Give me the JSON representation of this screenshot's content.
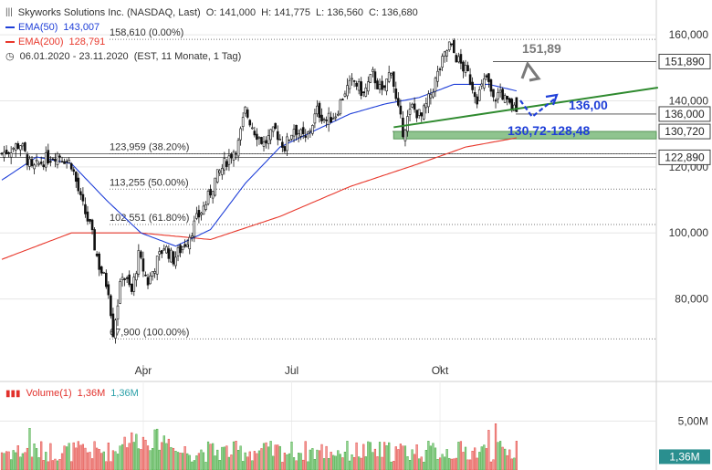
{
  "header": {
    "title": "Skyworks Solutions Inc. (NASDAQ, Last)",
    "o": "O: 141,000",
    "h": "H: 141,775",
    "l": "L: 136,560",
    "c": "C: 136,680",
    "ema50_label": "EMA(50)",
    "ema50_value": "143,007",
    "ema200_label": "EMA(200)",
    "ema200_value": "128,791",
    "period": "06.01.2020 - 23.11.2020",
    "period_note": "(EST, 11 Monate, 1 Tag)"
  },
  "volume_legend": {
    "label": "Volume(1)",
    "value_red": "1,36M",
    "value_teal": "1,36M"
  },
  "colors": {
    "up": "#32a02c",
    "down": "#e2312c",
    "ema50": "#1f3fd8",
    "ema200": "#e8382c",
    "trend": "#2f8a2f",
    "zone": "#8fc48f",
    "forecast": "#1f3fd8",
    "arrow_gray": "#7a7a7a",
    "last_price_bg": "#3a3a3a"
  },
  "chart_data": {
    "type": "candlestick",
    "ylim": [
      60000,
      165000
    ],
    "y_ticks": [
      {
        "v": 160000,
        "t": "160,000"
      },
      {
        "v": 140000,
        "t": "140,000"
      },
      {
        "v": 120000,
        "t": "120,000"
      },
      {
        "v": 100000,
        "t": "100,000"
      },
      {
        "v": 80000,
        "t": "80,000"
      }
    ],
    "x_ticks": [
      {
        "day": 61,
        "t": "Apr"
      },
      {
        "day": 125,
        "t": "Jul"
      },
      {
        "day": 189,
        "t": "Okt"
      }
    ],
    "fib_levels": [
      {
        "v": 158610,
        "t": "158,610 (0.00%)"
      },
      {
        "v": 123959,
        "t": "123,959 (38.20%)"
      },
      {
        "v": 113255,
        "t": "113,255 (50.00%)"
      },
      {
        "v": 102551,
        "t": "102,551 (61.80%)"
      },
      {
        "v": 67900,
        "t": "67,900 (100.00%)"
      }
    ],
    "price_labels": [
      {
        "v": 151890,
        "t": "151,890",
        "bg": "#ffffff",
        "fg": "#222222"
      },
      {
        "v": 136000,
        "t": "136,000",
        "bg": "#ffffff",
        "fg": "#222222"
      },
      {
        "v": 130720,
        "t": "130,720",
        "bg": "#ffffff",
        "fg": "#222222"
      },
      {
        "v": 122890,
        "t": "122,890",
        "bg": "#ffffff",
        "fg": "#222222"
      }
    ],
    "annotations": {
      "top_target": "151,89",
      "support": "136,00",
      "zone": "130,72-128,48"
    },
    "anchors": [
      {
        "d": 0,
        "c": 124000
      },
      {
        "d": 8,
        "c": 127000
      },
      {
        "d": 13,
        "c": 119000
      },
      {
        "d": 18,
        "c": 122000
      },
      {
        "d": 24,
        "c": 124000
      },
      {
        "d": 30,
        "c": 121000
      },
      {
        "d": 34,
        "c": 110000
      },
      {
        "d": 38,
        "c": 102000
      },
      {
        "d": 42,
        "c": 90000
      },
      {
        "d": 46,
        "c": 83000
      },
      {
        "d": 48,
        "c": 70000
      },
      {
        "d": 52,
        "c": 88000
      },
      {
        "d": 56,
        "c": 82000
      },
      {
        "d": 59,
        "c": 93000
      },
      {
        "d": 63,
        "c": 85000
      },
      {
        "d": 66,
        "c": 90000
      },
      {
        "d": 70,
        "c": 96000
      },
      {
        "d": 74,
        "c": 92000
      },
      {
        "d": 80,
        "c": 98000
      },
      {
        "d": 84,
        "c": 104000
      },
      {
        "d": 88,
        "c": 109000
      },
      {
        "d": 92,
        "c": 116000
      },
      {
        "d": 97,
        "c": 122000
      },
      {
        "d": 102,
        "c": 127000
      },
      {
        "d": 105,
        "c": 137000
      },
      {
        "d": 109,
        "c": 131000
      },
      {
        "d": 113,
        "c": 127000
      },
      {
        "d": 118,
        "c": 131000
      },
      {
        "d": 122,
        "c": 126000
      },
      {
        "d": 126,
        "c": 132000
      },
      {
        "d": 131,
        "c": 128000
      },
      {
        "d": 136,
        "c": 137000
      },
      {
        "d": 140,
        "c": 134000
      },
      {
        "d": 144,
        "c": 136000
      },
      {
        "d": 148,
        "c": 143000
      },
      {
        "d": 152,
        "c": 146000
      },
      {
        "d": 156,
        "c": 142000
      },
      {
        "d": 160,
        "c": 148000
      },
      {
        "d": 164,
        "c": 142000
      },
      {
        "d": 168,
        "c": 150000
      },
      {
        "d": 170,
        "c": 140000
      },
      {
        "d": 173,
        "c": 131000
      },
      {
        "d": 177,
        "c": 138000
      },
      {
        "d": 181,
        "c": 135000
      },
      {
        "d": 185,
        "c": 142000
      },
      {
        "d": 189,
        "c": 150000
      },
      {
        "d": 193,
        "c": 157000
      },
      {
        "d": 197,
        "c": 152000
      },
      {
        "d": 201,
        "c": 148000
      },
      {
        "d": 205,
        "c": 141000
      },
      {
        "d": 209,
        "c": 147000
      },
      {
        "d": 212,
        "c": 140000
      },
      {
        "d": 215,
        "c": 143000
      },
      {
        "d": 218,
        "c": 139000
      },
      {
        "d": 222,
        "c": 136680
      }
    ],
    "ema_anchors": {
      "ema50": [
        {
          "d": 0,
          "v": 116000
        },
        {
          "d": 15,
          "v": 123000
        },
        {
          "d": 30,
          "v": 121000
        },
        {
          "d": 45,
          "v": 110000
        },
        {
          "d": 60,
          "v": 100000
        },
        {
          "d": 75,
          "v": 96000
        },
        {
          "d": 90,
          "v": 101000
        },
        {
          "d": 105,
          "v": 115000
        },
        {
          "d": 120,
          "v": 126000
        },
        {
          "d": 135,
          "v": 131000
        },
        {
          "d": 150,
          "v": 136000
        },
        {
          "d": 165,
          "v": 139000
        },
        {
          "d": 180,
          "v": 141000
        },
        {
          "d": 195,
          "v": 145000
        },
        {
          "d": 210,
          "v": 145000
        },
        {
          "d": 222,
          "v": 143007
        }
      ],
      "ema200": [
        {
          "d": 0,
          "v": 92000
        },
        {
          "d": 30,
          "v": 100000
        },
        {
          "d": 60,
          "v": 100000
        },
        {
          "d": 90,
          "v": 98000
        },
        {
          "d": 120,
          "v": 105000
        },
        {
          "d": 150,
          "v": 114000
        },
        {
          "d": 180,
          "v": 121000
        },
        {
          "d": 200,
          "v": 126000
        },
        {
          "d": 222,
          "v": 128791
        }
      ]
    },
    "trendline": {
      "from": {
        "d": 169,
        "v": 132000
      },
      "to": {
        "d": 283,
        "v": 144000
      }
    },
    "support_zone": {
      "from_day": 169,
      "top": 130720,
      "bottom": 128480
    },
    "volume": {
      "ylim": [
        0,
        7000000
      ],
      "y_ticks": [
        {
          "v": 5000000,
          "t": "5,00M"
        }
      ],
      "last": {
        "v": 1360000,
        "t": "1,36M"
      }
    }
  }
}
